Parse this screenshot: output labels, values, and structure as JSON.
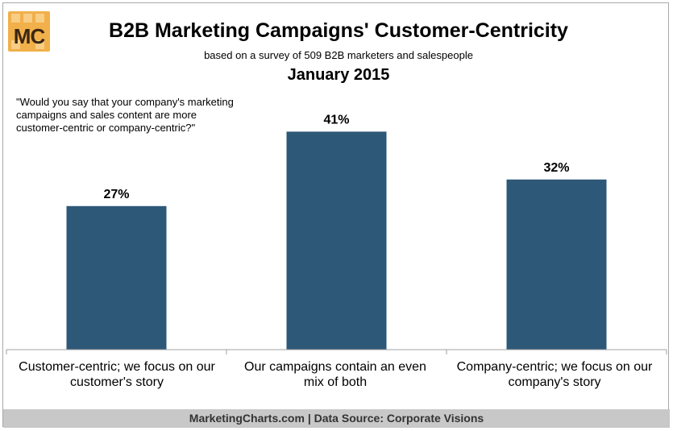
{
  "logo": {
    "text": "MC"
  },
  "header": {
    "title": "B2B Marketing Campaigns' Customer-Centricity",
    "subtitle": "based on a survey of 509 B2B marketers and salespeople",
    "date": "January 2015"
  },
  "question": "\"Would you say that your company's marketing campaigns and sales content are more customer-centric or company-centric?\"",
  "chart_data": {
    "type": "bar",
    "categories": [
      "Customer-centric; we focus on our customer's story",
      "Our campaigns contain an even mix of both",
      "Company-centric; we focus on our company's story"
    ],
    "values": [
      27,
      41,
      32
    ],
    "value_labels": [
      "27%",
      "41%",
      "32%"
    ],
    "ylim": [
      0,
      50
    ],
    "grid": false,
    "bar_color": "#2e5878"
  },
  "footer": "MarketingCharts.com | Data Source: Corporate Visions"
}
